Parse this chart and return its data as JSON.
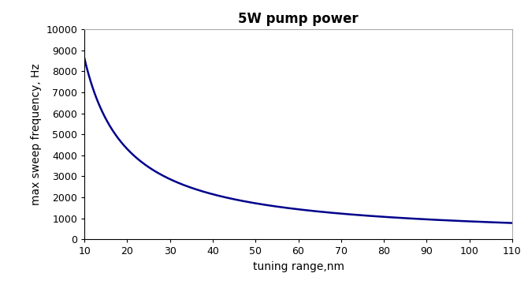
{
  "title": "5W pump power",
  "xlabel": "tuning range,nm",
  "ylabel": "max sweep frequency, Hz",
  "x_start": 10,
  "x_end": 110,
  "xlim": [
    10,
    110
  ],
  "ylim": [
    0,
    10000
  ],
  "yticks": [
    0,
    1000,
    2000,
    3000,
    4000,
    5000,
    6000,
    7000,
    8000,
    9000,
    10000
  ],
  "xticks": [
    10,
    20,
    30,
    40,
    50,
    60,
    70,
    80,
    90,
    100,
    110
  ],
  "line_color": "#00008B",
  "line_width": 1.8,
  "curve_scale": 86000,
  "background_color": "#ffffff",
  "title_fontsize": 12,
  "label_fontsize": 10,
  "tick_fontsize": 9,
  "spine_top_color": "#aaaaaa",
  "spine_right_color": "#aaaaaa"
}
